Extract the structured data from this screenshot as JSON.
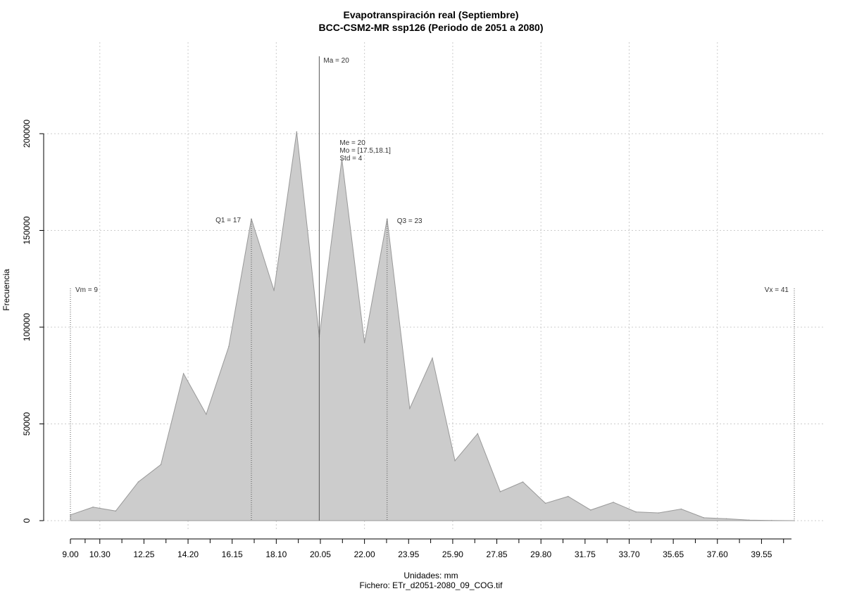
{
  "chart_data": {
    "type": "area",
    "title": "Evapotranspiración real (Septiembre)",
    "subtitle": "BCC-CSM2-MR ssp126 (Periodo de 2051 a 2080)",
    "xlabel": "Unidades: mm",
    "ylabel": "Frecuencia",
    "footer": "Fichero: ETr_d2051-2080_09_COG.tif",
    "xlim": [
      9.0,
      41.0
    ],
    "ylim": [
      0,
      200000
    ],
    "grid": true,
    "x_tick_labels": [
      "9.00",
      "10.30",
      "12.25",
      "14.20",
      "16.15",
      "18.10",
      "20.05",
      "22.00",
      "23.95",
      "25.90",
      "27.85",
      "29.80",
      "31.75",
      "33.70",
      "35.65",
      "37.60",
      "39.55"
    ],
    "y_tick_labels": [
      "0",
      "50000",
      "100000",
      "150000",
      "200000"
    ],
    "x": [
      9.0,
      10.0,
      11.0,
      12.0,
      13.0,
      14.0,
      15.0,
      16.0,
      17.0,
      18.0,
      19.0,
      20.0,
      21.0,
      22.0,
      23.0,
      24.0,
      25.0,
      26.0,
      27.0,
      28.0,
      29.0,
      30.0,
      31.0,
      32.0,
      33.0,
      34.0,
      35.0,
      36.0,
      37.0,
      38.0,
      39.0,
      40.0,
      41.0
    ],
    "values": [
      3000,
      7000,
      5000,
      20000,
      29000,
      76000,
      55000,
      90000,
      156000,
      119000,
      201000,
      95000,
      187000,
      92000,
      156000,
      58000,
      84000,
      31000,
      45000,
      15000,
      20000,
      9000,
      12500,
      5500,
      9500,
      4500,
      4000,
      6000,
      1500,
      1000,
      300,
      100,
      0
    ],
    "annotations": {
      "min": {
        "label": "Vm = 9",
        "x": 9.0
      },
      "max": {
        "label": "Vx = 41",
        "x": 41.0
      },
      "q1": {
        "label": "Q1 = 17",
        "x": 17.0
      },
      "q3": {
        "label": "Q3 = 23",
        "x": 23.0
      },
      "mean": {
        "label": "Ma = 20",
        "x": 20.0
      },
      "stats": [
        "Me = 20",
        "Mo = [17.5,18.1]",
        "Std = 4"
      ]
    },
    "colors": {
      "fill": "#cccccc",
      "stroke": "#999999",
      "grid": "#cccccc",
      "vline": "#555555"
    }
  }
}
